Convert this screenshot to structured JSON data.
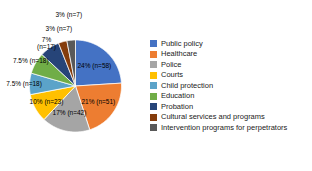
{
  "chart_data": {
    "type": "pie",
    "categories": [
      "Public policy",
      "Healthcare",
      "Police",
      "Courts",
      "Child protection",
      "Education",
      "Probation",
      "Cultural services and programs",
      "Intervention programs for perpetrators"
    ],
    "values": [
      24,
      21,
      17,
      10,
      7.5,
      7.5,
      7,
      3,
      3
    ],
    "value_labels": [
      "24% (n=58)",
      "21% (n=51)",
      "17% (n=42)",
      "10% (n=23)",
      "7.5% (n=18)",
      "7.5% (n=18)",
      "7%\n(n=17)",
      "3% (n=7)",
      "3% (n=7)"
    ],
    "colors": [
      "#4472C4",
      "#ED7D31",
      "#A5A5A5",
      "#FFC000",
      "#5BA3C9",
      "#70AD47",
      "#264478",
      "#843C0C",
      "#595959"
    ],
    "data_labels": true,
    "legend": "right"
  }
}
